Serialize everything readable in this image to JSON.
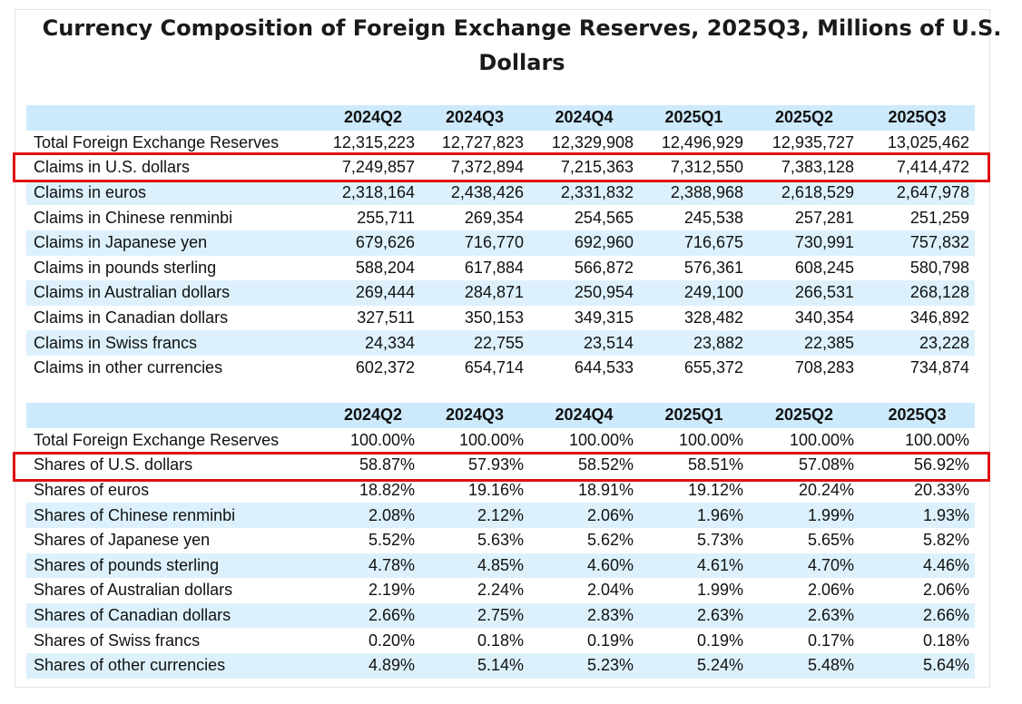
{
  "title_line1": "Currency Composition of Foreign Exchange Reserves, 2025Q3, Millions of U.S.",
  "title_line2": "Dollars",
  "claims": {
    "columns": [
      "",
      "2024Q2",
      "2024Q3",
      "2024Q4",
      "2025Q1",
      "2025Q2",
      "2025Q3"
    ],
    "rows": [
      [
        "Total Foreign Exchange Reserves",
        "12,315,223",
        "12,727,823",
        "12,329,908",
        "12,496,929",
        "12,935,727",
        "13,025,462"
      ],
      [
        "Claims in U.S. dollars",
        "7,249,857",
        "7,372,894",
        "7,215,363",
        "7,312,550",
        "7,383,128",
        "7,414,472"
      ],
      [
        "Claims in euros",
        "2,318,164",
        "2,438,426",
        "2,331,832",
        "2,388,968",
        "2,618,529",
        "2,647,978"
      ],
      [
        "Claims in Chinese renminbi",
        "255,711",
        "269,354",
        "254,565",
        "245,538",
        "257,281",
        "251,259"
      ],
      [
        "Claims in Japanese yen",
        "679,626",
        "716,770",
        "692,960",
        "716,675",
        "730,991",
        "757,832"
      ],
      [
        "Claims in pounds sterling",
        "588,204",
        "617,884",
        "566,872",
        "576,361",
        "608,245",
        "580,798"
      ],
      [
        "Claims in Australian dollars",
        "269,444",
        "284,871",
        "250,954",
        "249,100",
        "266,531",
        "268,128"
      ],
      [
        "Claims in Canadian dollars",
        "327,511",
        "350,153",
        "349,315",
        "328,482",
        "340,354",
        "346,892"
      ],
      [
        "Claims in Swiss francs",
        "24,334",
        "22,755",
        "23,514",
        "23,882",
        "22,385",
        "23,228"
      ],
      [
        "Claims in other currencies",
        "602,372",
        "654,714",
        "644,533",
        "655,372",
        "708,283",
        "734,874"
      ]
    ]
  },
  "shares": {
    "columns": [
      "",
      "2024Q2",
      "2024Q3",
      "2024Q4",
      "2025Q1",
      "2025Q2",
      "2025Q3"
    ],
    "rows": [
      [
        "Total Foreign Exchange Reserves",
        "100.00%",
        "100.00%",
        "100.00%",
        "100.00%",
        "100.00%",
        "100.00%"
      ],
      [
        "Shares of U.S. dollars",
        "58.87%",
        "57.93%",
        "58.52%",
        "58.51%",
        "57.08%",
        "56.92%"
      ],
      [
        "Shares of euros",
        "18.82%",
        "19.16%",
        "18.91%",
        "19.12%",
        "20.24%",
        "20.33%"
      ],
      [
        "Shares of Chinese renminbi",
        "2.08%",
        "2.12%",
        "2.06%",
        "1.96%",
        "1.99%",
        "1.93%"
      ],
      [
        "Shares of Japanese yen",
        "5.52%",
        "5.63%",
        "5.62%",
        "5.73%",
        "5.65%",
        "5.82%"
      ],
      [
        "Shares of pounds sterling",
        "4.78%",
        "4.85%",
        "4.60%",
        "4.61%",
        "4.70%",
        "4.46%"
      ],
      [
        "Shares of Australian dollars",
        "2.19%",
        "2.24%",
        "2.04%",
        "1.99%",
        "2.06%",
        "2.06%"
      ],
      [
        "Shares of Canadian dollars",
        "2.66%",
        "2.75%",
        "2.83%",
        "2.63%",
        "2.63%",
        "2.66%"
      ],
      [
        "Shares of Swiss francs",
        "0.20%",
        "0.18%",
        "0.19%",
        "0.19%",
        "0.17%",
        "0.18%"
      ],
      [
        "Shares of other currencies",
        "4.89%",
        "5.14%",
        "5.23%",
        "5.24%",
        "5.48%",
        "5.64%"
      ]
    ]
  },
  "colors": {
    "header_fill": "#cdeafc",
    "row_fill": "#dcf1fc",
    "highlight": "#e01010"
  }
}
